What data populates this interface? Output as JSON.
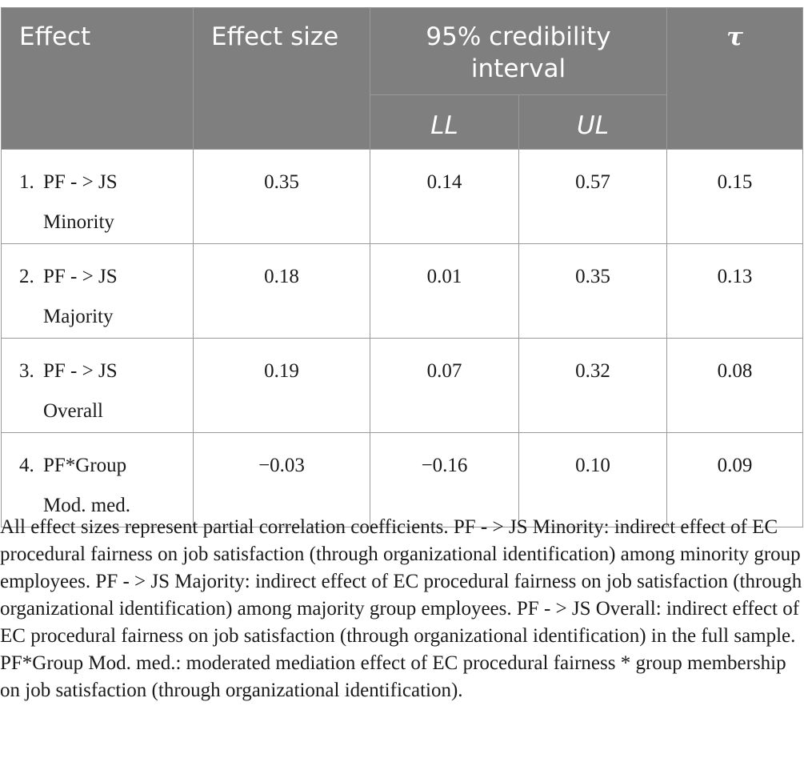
{
  "table": {
    "headers": {
      "effect": "Effect",
      "effect_size": "Effect size",
      "ci": "95% credibility interval",
      "ll": "LL",
      "ul": "UL",
      "tau": "τ"
    },
    "rows": [
      {
        "num": "1.",
        "label": "PF - > JS",
        "sublabel": "Minority",
        "effect_size": "0.35",
        "ll": "0.14",
        "ul": "0.57",
        "tau": "0.15"
      },
      {
        "num": "2.",
        "label": "PF - > JS",
        "sublabel": "Majority",
        "effect_size": "0.18",
        "ll": "0.01",
        "ul": "0.35",
        "tau": "0.13"
      },
      {
        "num": "3.",
        "label": "PF - > JS",
        "sublabel": "Overall",
        "effect_size": "0.19",
        "ll": "0.07",
        "ul": "0.32",
        "tau": "0.08"
      },
      {
        "num": "4.",
        "label": "PF*Group",
        "sublabel": "Mod. med.",
        "effect_size": "−0.03",
        "ll": "−0.16",
        "ul": "0.10",
        "tau": "0.09"
      }
    ]
  },
  "note": "All effect sizes represent partial correlation coefficients. PF - > JS Minority: indirect effect of EC procedural fairness on job satisfaction (through organizational identification) among minority group employees. PF - > JS Majority: indirect effect of EC procedural fairness on job satisfaction (through organizational identification) among majority group employees. PF - > JS Overall: indirect effect of EC procedural fairness on job satisfaction (through organizational identification) in the full sample. PF*Group Mod. med.: moderated mediation effect of EC procedural fairness * group membership on job satisfaction (through organizational identification)."
}
